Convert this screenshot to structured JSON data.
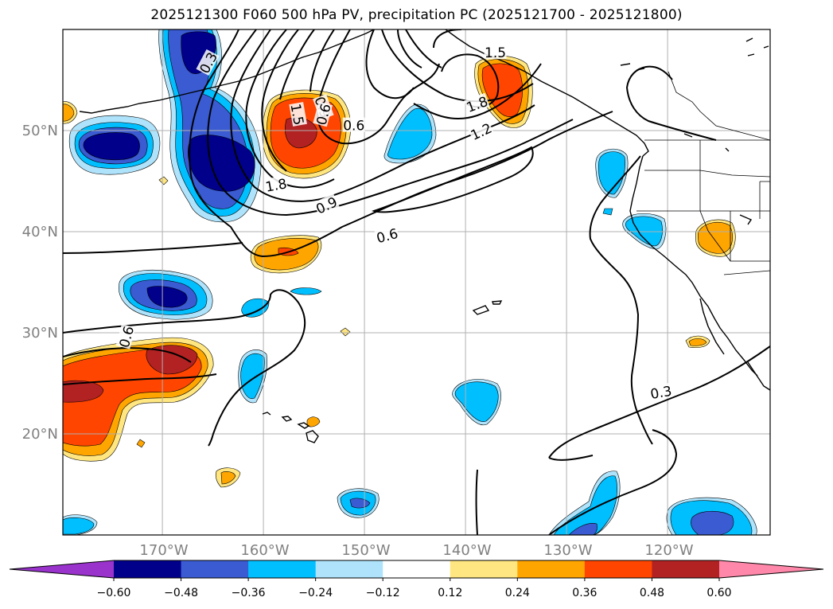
{
  "title": "2025121300 F060 500 hPa PV, precipitation PC (2025121700 - 2025121800)",
  "chart_data": {
    "type": "heatmap",
    "title": "2025121300 F060 500 hPa PV, precipitation PC (2025121700 - 2025121800)",
    "map_extent": {
      "lon": [
        -180,
        -110
      ],
      "lat": [
        10,
        60
      ]
    },
    "grid": true,
    "lat_ticks": [
      {
        "value": 20,
        "label": "20°N"
      },
      {
        "value": 30,
        "label": "30°N"
      },
      {
        "value": 40,
        "label": "40°N"
      },
      {
        "value": 50,
        "label": "50°N"
      }
    ],
    "lon_ticks": [
      {
        "value": -170,
        "label": "170°W"
      },
      {
        "value": -160,
        "label": "160°W"
      },
      {
        "value": -150,
        "label": "150°W"
      },
      {
        "value": -140,
        "label": "140°W"
      },
      {
        "value": -130,
        "label": "130°W"
      },
      {
        "value": -120,
        "label": "120°W"
      }
    ],
    "colorbar": {
      "orientation": "horizontal",
      "extend": "both",
      "bounds": [
        -0.72,
        -0.6,
        -0.48,
        -0.36,
        -0.24,
        -0.12,
        0.12,
        0.24,
        0.36,
        0.48,
        0.6,
        0.72
      ],
      "colors": [
        "#9933cc",
        "#00008b",
        "#3a5bd1",
        "#00bfff",
        "#aee3fb",
        "#ffffff",
        "#ffe680",
        "#ffa500",
        "#ff4500",
        "#b22222",
        "#ff88aa"
      ],
      "tick_labels": [
        "−0.60",
        "−0.48",
        "−0.36",
        "−0.24",
        "−0.12",
        "0.12",
        "0.24",
        "0.36",
        "0.48",
        "0.60"
      ]
    },
    "contour_labels": [
      {
        "text": "0.3",
        "lon": -165.6,
        "lat": 56.7,
        "rotate": -62
      },
      {
        "text": "1.5",
        "lon": -156.8,
        "lat": 51.6,
        "rotate": 80
      },
      {
        "text": "0.9",
        "lon": -154.3,
        "lat": 52.3,
        "rotate": 70
      },
      {
        "text": "0.6",
        "lon": -154.2,
        "lat": 51.6,
        "rotate": -75
      },
      {
        "text": "0.6",
        "lon": -151.2,
        "lat": 50.5,
        "rotate": 0
      },
      {
        "text": "1.5",
        "lon": -137.2,
        "lat": 57.7,
        "rotate": 0
      },
      {
        "text": "1.8",
        "lon": -139.0,
        "lat": 52.6,
        "rotate": -20
      },
      {
        "text": "1.2",
        "lon": -138.6,
        "lat": 49.9,
        "rotate": -25
      },
      {
        "text": "1.8",
        "lon": -158.9,
        "lat": 44.6,
        "rotate": -10
      },
      {
        "text": "0.9",
        "lon": -153.9,
        "lat": 42.6,
        "rotate": -25
      },
      {
        "text": "0.6",
        "lon": -147.9,
        "lat": 39.6,
        "rotate": -15
      },
      {
        "text": "0.6",
        "lon": -173.7,
        "lat": 29.6,
        "rotate": -75
      },
      {
        "text": "0.3",
        "lon": -120.8,
        "lat": 24.1,
        "rotate": -10
      }
    ]
  }
}
